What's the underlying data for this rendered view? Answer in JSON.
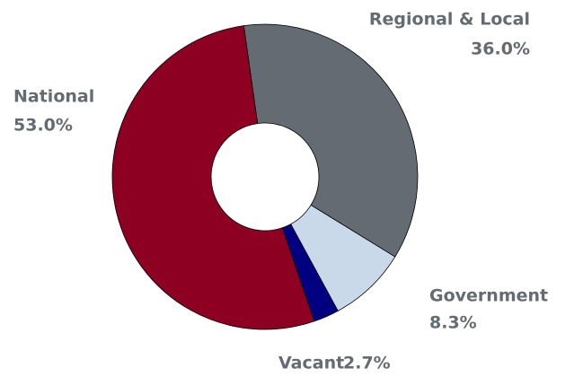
{
  "chart_data": {
    "type": "donut",
    "categories": [
      "Regional & Local",
      "Government",
      "Vacant",
      "National"
    ],
    "values": [
      36.0,
      8.3,
      2.7,
      53.0
    ],
    "value_labels": [
      "36.0%",
      "8.3%",
      "2.7%",
      "53.0%"
    ],
    "colors": [
      "#646b72",
      "#c9d9ea",
      "#000080",
      "#8e0022"
    ]
  }
}
